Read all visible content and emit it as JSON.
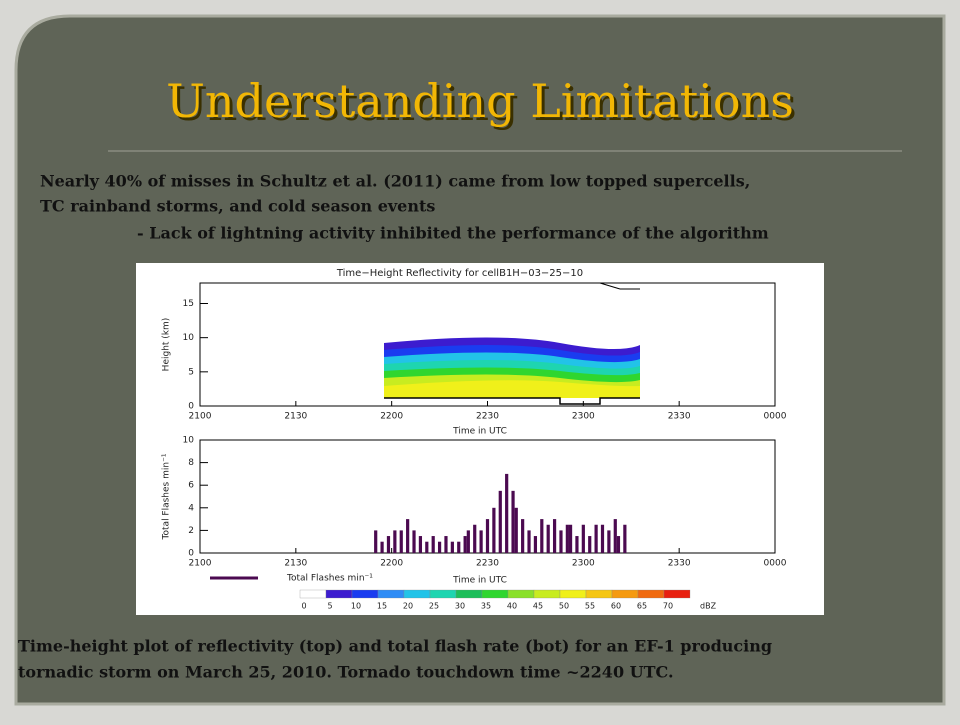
{
  "slide": {
    "title": "Understanding Limitations",
    "body": [
      "Nearly 40% of misses in Schultz et al. (2011) came from low topped supercells,",
      "TC rainband storms, and cold season events",
      "- Lack of lightning activity inhibited the performance of the algorithm"
    ],
    "caption": [
      "Time-height plot of reflectivity (top) and total flash rate (bot) for an EF-1 producing",
      "tornadic storm on March 25, 2010. Tornado touchdown time ~2240 UTC."
    ]
  },
  "chart_data": [
    {
      "type": "contour",
      "title": "Time−Height Reflectivity for cellB1H−03−25−10",
      "xlabel": "Time in UTC",
      "ylabel": "Height (km)",
      "xlim": [
        0,
        180
      ],
      "xticks": [
        {
          "value": 0,
          "label": "2100"
        },
        {
          "value": 30,
          "label": "2130"
        },
        {
          "value": 60,
          "label": "2200"
        },
        {
          "value": 90,
          "label": "2230"
        },
        {
          "value": 120,
          "label": "2300"
        },
        {
          "value": 150,
          "label": "2330"
        },
        {
          "value": 180,
          "label": "0000"
        }
      ],
      "ylim": [
        0,
        18
      ],
      "yticks": [
        0,
        5,
        10,
        15
      ]
    },
    {
      "type": "bar",
      "xlabel": "Time in UTC",
      "ylabel": "Total Flashes min⁻¹",
      "xlim": [
        0,
        180
      ],
      "xticks": [
        {
          "value": 0,
          "label": "2100"
        },
        {
          "value": 30,
          "label": "2130"
        },
        {
          "value": 60,
          "label": "2200"
        },
        {
          "value": 90,
          "label": "2230"
        },
        {
          "value": 120,
          "label": "2300"
        },
        {
          "value": 150,
          "label": "2330"
        },
        {
          "value": 180,
          "label": "0000"
        }
      ],
      "ylim": [
        0,
        10
      ],
      "yticks": [
        0,
        2,
        4,
        6,
        8,
        10
      ],
      "x": [
        55,
        57,
        59,
        61,
        63,
        65,
        67,
        69,
        71,
        73,
        75,
        77,
        79,
        81,
        83,
        84,
        86,
        88,
        90,
        92,
        94,
        96,
        98,
        99,
        101,
        103,
        105,
        107,
        109,
        111,
        113,
        115,
        116,
        118,
        120,
        122,
        124,
        126,
        128,
        130,
        131,
        133
      ],
      "series": [
        {
          "name": "Total Flashes min⁻¹",
          "color": "#4b0a50",
          "values": [
            2,
            1,
            1.5,
            2,
            2,
            3,
            2,
            1.5,
            1,
            1.5,
            1,
            1.5,
            1,
            1,
            1.5,
            2,
            2.5,
            2,
            3,
            4,
            5.5,
            7,
            5.5,
            4,
            3,
            2,
            1.5,
            3,
            2.5,
            3,
            2,
            2.5,
            2.5,
            1.5,
            2.5,
            1.5,
            2.5,
            2.5,
            2,
            3,
            1.5,
            2.5
          ]
        }
      ]
    }
  ],
  "colorbar": {
    "label": "dBZ",
    "ticks": [
      0,
      5,
      10,
      15,
      20,
      25,
      30,
      35,
      40,
      45,
      50,
      55,
      60,
      65,
      70
    ],
    "colors": [
      "#ffffff",
      "#3c1ccf",
      "#1a3cf0",
      "#2f8cf5",
      "#22c3e8",
      "#1ed5b0",
      "#1dbe5a",
      "#2fd62f",
      "#8ae02a",
      "#c8ec20",
      "#f0f01a",
      "#f5c614",
      "#f59a10",
      "#f06a10",
      "#e82010"
    ]
  }
}
